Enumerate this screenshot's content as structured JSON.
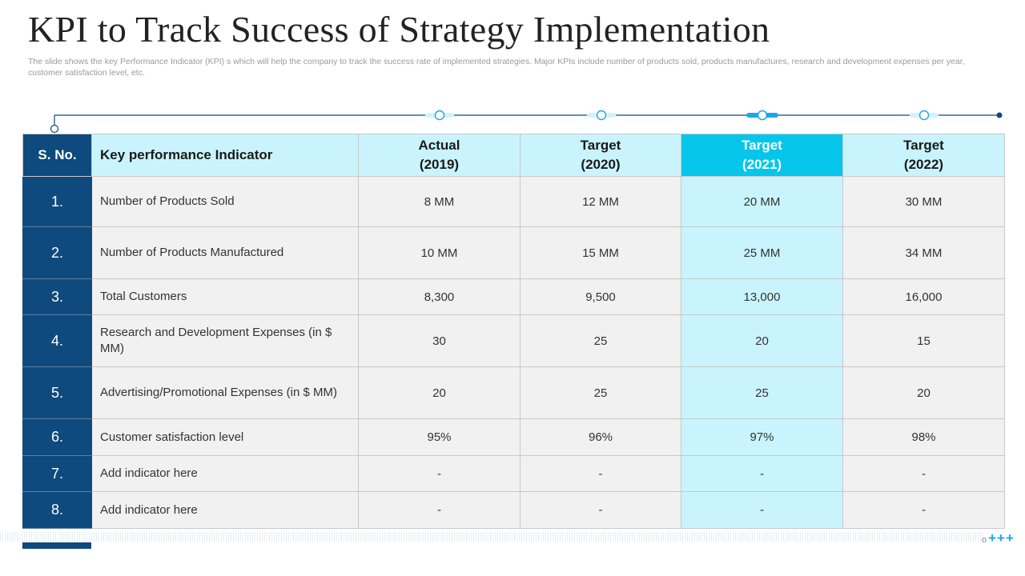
{
  "slide": {
    "title": "KPI to Track Success of Strategy Implementation",
    "subtitle": "The slide shows the key Performance Indicator (KPI) s which will help the company to track the success rate of implemented strategies. Major KPIs include number of products sold, products manufactures, research and development expenses per year, customer satisfaction level, etc."
  },
  "table": {
    "headers": {
      "sno": "S. No.",
      "kpi": "Key performance Indicator",
      "c1": [
        "Actual",
        "(2019)"
      ],
      "c2": [
        "Target",
        "(2020)"
      ],
      "c3": [
        "Target",
        "(2021)"
      ],
      "c4": [
        "Target",
        "(2022)"
      ]
    },
    "rows": [
      {
        "no": "1.",
        "kpi": "Number of Products Sold",
        "v": [
          "8 MM",
          "12 MM",
          "20 MM",
          "30 MM"
        ]
      },
      {
        "no": "2.",
        "kpi": "Number of Products Manufactured",
        "v": [
          "10 MM",
          "15 MM",
          "25 MM",
          "34 MM"
        ]
      },
      {
        "no": "3.",
        "kpi": "Total Customers",
        "v": [
          "8,300",
          "9,500",
          "13,000",
          "16,000"
        ]
      },
      {
        "no": "4.",
        "kpi": "Research and Development Expenses (in $ MM)",
        "v": [
          "30",
          "25",
          "20",
          "15"
        ]
      },
      {
        "no": "5.",
        "kpi": "Advertising/Promotional Expenses (in $ MM)",
        "v": [
          "20",
          "25",
          "25",
          "20"
        ]
      },
      {
        "no": "6.",
        "kpi": "Customer satisfaction level",
        "v": [
          "95%",
          "96%",
          "97%",
          "98%"
        ]
      },
      {
        "no": "7.",
        "kpi": "Add indicator here",
        "v": [
          "-",
          "-",
          "-",
          "-"
        ]
      },
      {
        "no": "8.",
        "kpi": "Add indicator here",
        "v": [
          "-",
          "-",
          "-",
          "-"
        ]
      }
    ]
  },
  "theme": {
    "navy": "#0e4a7e",
    "highlight_cyan": "#05c6ea",
    "light_cyan": "#c9f4fd",
    "cell_gray": "#f1f1f1"
  },
  "decor": {
    "plus_marks": "+++",
    "plus_prefix": "o"
  }
}
